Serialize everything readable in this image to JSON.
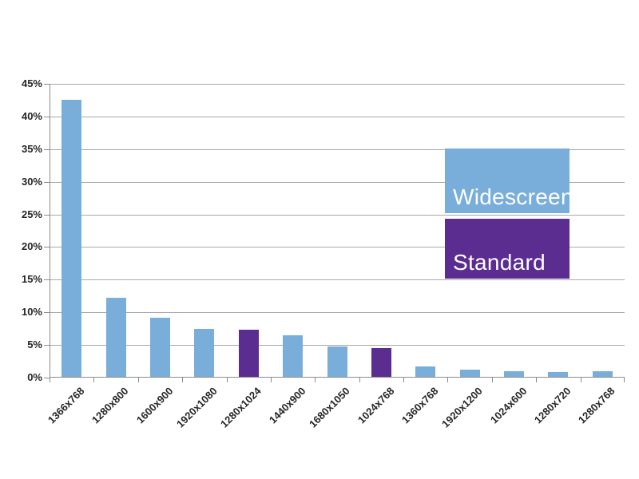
{
  "chart_data": {
    "type": "bar",
    "title": "",
    "xlabel": "",
    "ylabel": "",
    "categories": [
      "1366x768",
      "1280x800",
      "1600x900",
      "1920x1080",
      "1280x1024",
      "1440x900",
      "1680x1050",
      "1024x768",
      "1360x768",
      "1920x1200",
      "1024x600",
      "1280x720",
      "1280x768"
    ],
    "values": [
      42.4,
      12.1,
      9.0,
      7.4,
      7.2,
      6.4,
      4.6,
      4.4,
      1.6,
      1.1,
      0.9,
      0.7,
      0.8
    ],
    "groups": [
      "Widescreen",
      "Widescreen",
      "Widescreen",
      "Widescreen",
      "Standard",
      "Widescreen",
      "Widescreen",
      "Standard",
      "Widescreen",
      "Widescreen",
      "Widescreen",
      "Widescreen",
      "Widescreen"
    ],
    "ylim": [
      0,
      45
    ],
    "ytick_step": 5,
    "ytick_suffix": "%",
    "grid": true,
    "legend_position": "right-inside",
    "legend": [
      {
        "label": "Widescreen",
        "color": "#79AEDB"
      },
      {
        "label": "Standard",
        "color": "#5B2D90"
      }
    ]
  },
  "colors": {
    "widescreen_bar": "#79AEDB",
    "standard_bar": "#5B2D90",
    "gridline": "#a8a8a8",
    "axis": "#8c8c8c",
    "axis_label_text": "#262626",
    "legend_text": "#ffffff",
    "background": "#ffffff"
  }
}
